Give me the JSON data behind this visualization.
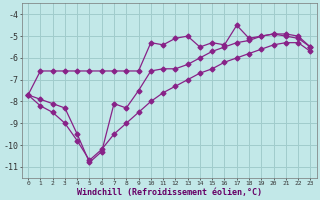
{
  "xlabel": "Windchill (Refroidissement éolien,°C)",
  "background_color": "#c2e8e8",
  "grid_color": "#a0cccc",
  "line_color": "#882288",
  "x_data": [
    0,
    1,
    2,
    3,
    4,
    5,
    6,
    7,
    8,
    9,
    10,
    11,
    12,
    13,
    14,
    15,
    16,
    17,
    18,
    19,
    20,
    21,
    22,
    23
  ],
  "line_top_y": [
    -7.7,
    -6.6,
    -6.6,
    -6.6,
    -6.6,
    -6.6,
    -6.6,
    -6.6,
    -6.6,
    -6.6,
    -5.3,
    -5.4,
    -5.1,
    -5.0,
    -5.5,
    -5.3,
    -5.4,
    -4.5,
    -5.1,
    -5.0,
    -4.9,
    -5.0,
    -5.1,
    -5.5
  ],
  "line_mid_y": [
    -7.7,
    -7.9,
    -8.1,
    -8.3,
    -9.5,
    -10.8,
    -10.3,
    -8.1,
    -8.3,
    -7.5,
    -6.6,
    -6.5,
    -6.5,
    -6.3,
    -6.0,
    -5.7,
    -5.5,
    -5.3,
    -5.2,
    -5.0,
    -4.9,
    -4.9,
    -5.0,
    -5.5
  ],
  "line_bot_y": [
    -7.7,
    -8.2,
    -8.5,
    -9.0,
    -9.8,
    -10.7,
    -10.2,
    -9.5,
    -9.0,
    -8.5,
    -8.0,
    -7.6,
    -7.3,
    -7.0,
    -6.7,
    -6.5,
    -6.2,
    -6.0,
    -5.8,
    -5.6,
    -5.4,
    -5.3,
    -5.3,
    -5.7
  ],
  "ylim": [
    -11.5,
    -3.5
  ],
  "xlim": [
    -0.5,
    23.5
  ],
  "yticks": [
    -11,
    -10,
    -9,
    -8,
    -7,
    -6,
    -5,
    -4
  ],
  "xticks": [
    0,
    1,
    2,
    3,
    4,
    5,
    6,
    7,
    8,
    9,
    10,
    11,
    12,
    13,
    14,
    15,
    16,
    17,
    18,
    19,
    20,
    21,
    22,
    23
  ]
}
